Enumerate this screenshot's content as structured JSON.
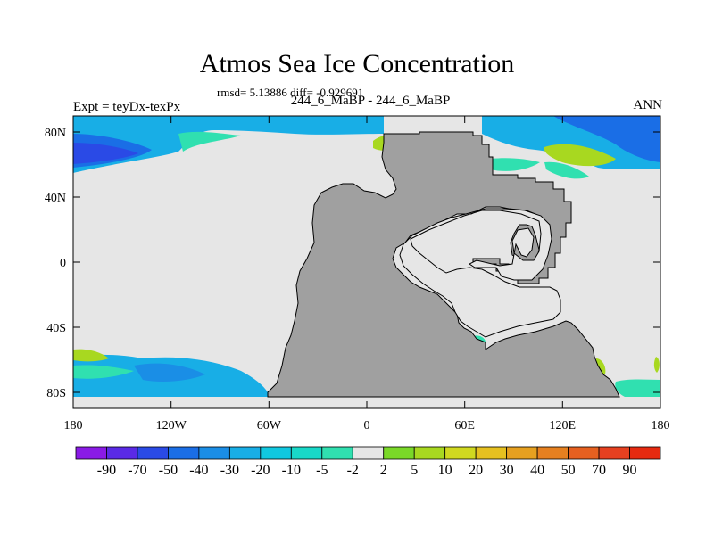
{
  "figure": {
    "title": "Atmos Sea Ice Concentration",
    "stats": "rmsd= 5.13886  diff= -0.929691",
    "left_label": "Expt = teyDx-texPx",
    "center_label": "244_6_MaBP - 244_6_MaBP",
    "right_label": "ANN"
  },
  "axes": {
    "y_ticks": [
      "80N",
      "40N",
      "0",
      "40S",
      "80S"
    ],
    "x_ticks": [
      "180",
      "120W",
      "60W",
      "0",
      "60E",
      "120E",
      "180"
    ]
  },
  "colorbar": {
    "labels": [
      "-90",
      "-70",
      "-50",
      "-40",
      "-30",
      "-20",
      "-10",
      "-5",
      "-2",
      "2",
      "5",
      "10",
      "20",
      "30",
      "40",
      "50",
      "70",
      "90"
    ],
    "colors": [
      "#8a1ae6",
      "#5a2ae6",
      "#2a4ae6",
      "#1a6ee6",
      "#1a8ee6",
      "#18aee6",
      "#10c8e0",
      "#18d8c8",
      "#30e0b0",
      "#e6e6e6",
      "#7ad828",
      "#a8d820",
      "#d0d820",
      "#e6c020",
      "#e6a020",
      "#e68020",
      "#e66020",
      "#e64020",
      "#e62a10"
    ]
  },
  "colors": {
    "land": "#a0a0a0",
    "ocean_zero": "#e6e6e6",
    "frame": "#000000"
  }
}
